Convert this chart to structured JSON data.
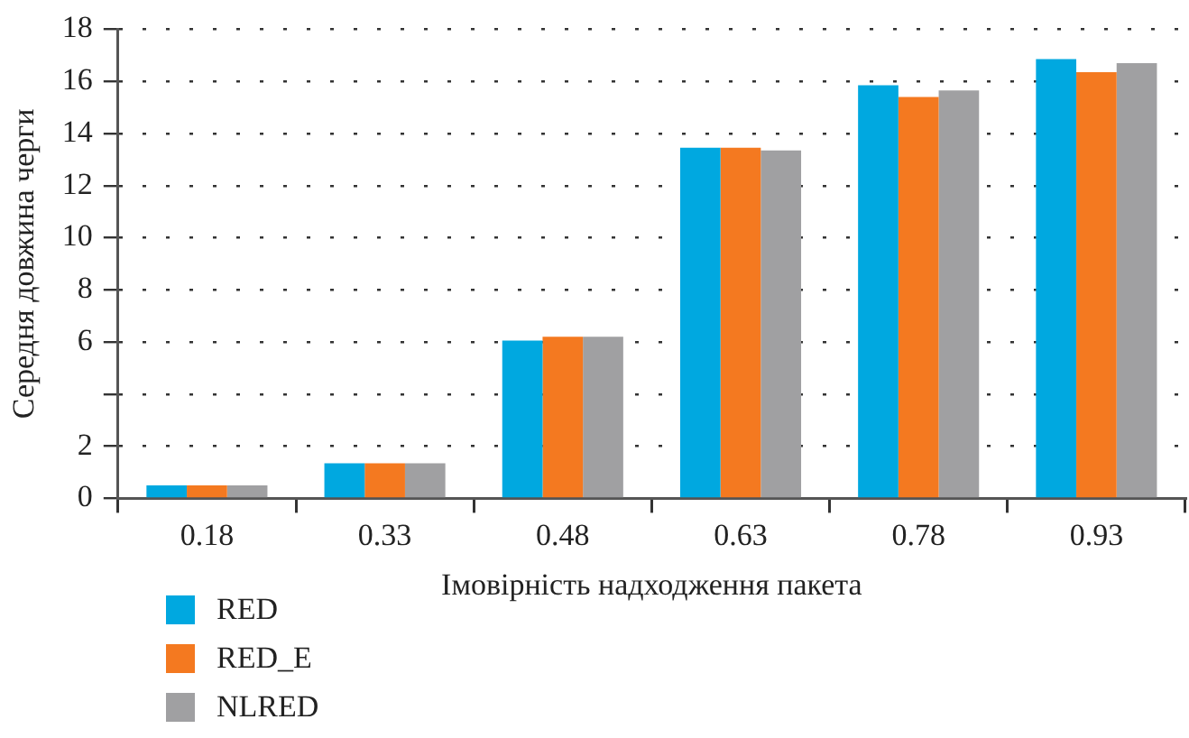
{
  "chart_data": {
    "type": "bar",
    "xlabel": "Імовірність надходження пакета",
    "ylabel": "Середня довжина черги",
    "categories": [
      "0.18",
      "0.33",
      "0.48",
      "0.63",
      "0.78",
      "0.93"
    ],
    "series": [
      {
        "name": "RED",
        "color": "#00a8e0",
        "values": [
          0.5,
          1.35,
          6.05,
          13.45,
          15.85,
          16.85
        ]
      },
      {
        "name": "RED_E",
        "color": "#f47920",
        "values": [
          0.5,
          1.35,
          6.2,
          13.45,
          15.4,
          16.35
        ]
      },
      {
        "name": "NLRED",
        "color": "#a0a0a2",
        "values": [
          0.5,
          1.35,
          6.2,
          13.35,
          15.65,
          16.7
        ]
      }
    ],
    "ylim": [
      0,
      18
    ],
    "yticks": [
      0,
      2,
      {
        "value": 4,
        "label": null
      },
      6,
      8,
      10,
      12,
      14,
      16,
      18
    ],
    "grid": "y",
    "legend": "bottom left"
  }
}
